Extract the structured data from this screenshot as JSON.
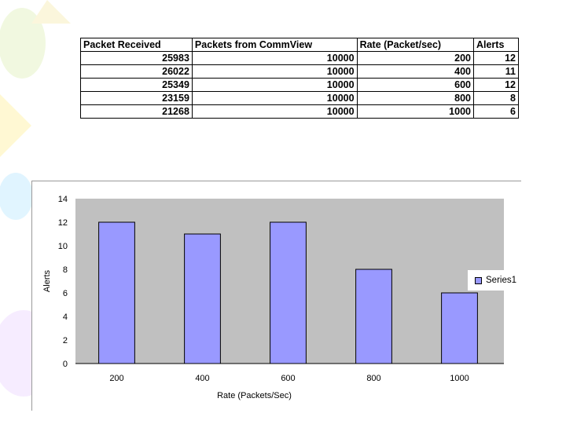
{
  "table": {
    "headers": [
      "Packet Received",
      "Packets from CommView",
      "Rate (Packet/sec)",
      "Alerts"
    ],
    "rows": [
      [
        "25983",
        "10000",
        "200",
        "12"
      ],
      [
        "26022",
        "10000",
        "400",
        "11"
      ],
      [
        "25349",
        "10000",
        "600",
        "12"
      ],
      [
        "23159",
        "10000",
        "800",
        "8"
      ],
      [
        "21268",
        "10000",
        "1000",
        "6"
      ]
    ]
  },
  "chart_data": {
    "type": "bar",
    "categories": [
      "200",
      "400",
      "600",
      "800",
      "1000"
    ],
    "series": [
      {
        "name": "Series1",
        "values": [
          12,
          11,
          12,
          8,
          6
        ]
      }
    ],
    "xlabel": "Rate (Packets/Sec)",
    "ylabel": "Alerts",
    "ylim": [
      0,
      14
    ],
    "yticks": [
      0,
      2,
      4,
      6,
      8,
      10,
      12,
      14
    ],
    "grid": false,
    "legend": "right",
    "colors": {
      "bar": "#9999ff",
      "plot_background": "#c0c0c0"
    }
  }
}
